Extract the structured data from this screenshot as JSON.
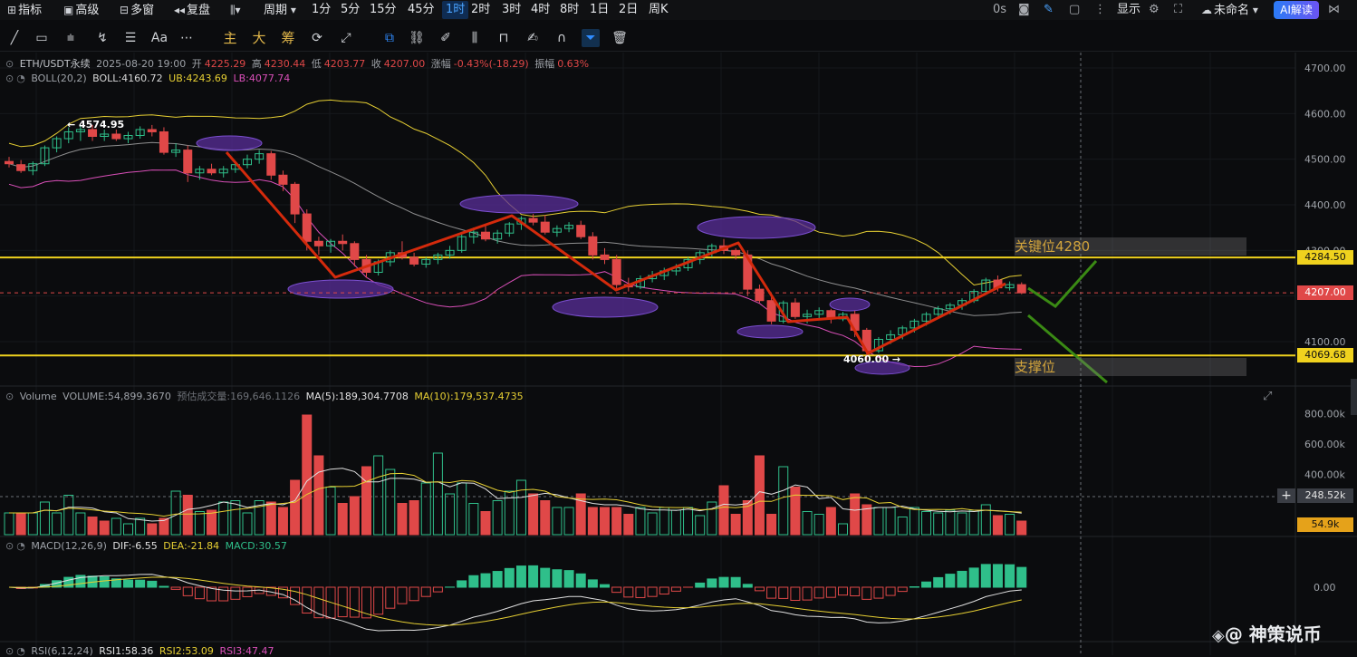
{
  "toolbar": {
    "indicator": "指标",
    "advanced": "高级",
    "multi_window": "多窗",
    "replay": "复盘",
    "period": "周期",
    "intervals": [
      "1分",
      "5分",
      "15分",
      "45分",
      "1时",
      "2时",
      "3时",
      "4时",
      "8时",
      "1日",
      "2日",
      "周K"
    ],
    "active_interval": "1时",
    "countdown": "0s",
    "display": "显示",
    "unnamed": "未命名",
    "ai_button": "AI解读"
  },
  "drawing_tools": {
    "main": "主",
    "big": "大",
    "chips": "筹",
    "text_tool": "Aa"
  },
  "legend": {
    "symbol": "ETH/USDT永续",
    "datetime": "2025-08-20 19:00",
    "open_label": "开",
    "open": "4225.29",
    "high_label": "高",
    "high": "4230.44",
    "low_label": "低",
    "low": "4203.77",
    "close_label": "收",
    "close": "4207.00",
    "change_label": "涨幅",
    "change": "-0.43%(-18.29)",
    "amp_label": "振幅",
    "amp": "0.63%",
    "boll_name": "BOLL(20,2)",
    "boll": "BOLL:4160.72",
    "ub": "UB:4243.69",
    "lb": "LB:4077.74",
    "volume_name": "Volume",
    "volume": "VOLUME:54,899.3670",
    "est_volume": "预估成交量:169,646.1126",
    "ma5": "MA(5):189,304.7708",
    "ma10": "MA(10):179,537.4735",
    "macd_name": "MACD(12,26,9)",
    "dif": "DIF:-6.55",
    "dea": "DEA:-21.84",
    "macd": "MACD:30.57",
    "rsi_name": "RSI(6,12,24)",
    "rsi1": "RSI1:58.36",
    "rsi2": "RSI2:53.09",
    "rsi3": "RSI3:47.47"
  },
  "annotations": {
    "key_level": "关键位4280",
    "support": "支撑位",
    "high_mark": "← 4574.95",
    "low_mark": "4060.00 →"
  },
  "price_tags": {
    "key_line": "4284.50",
    "current": "4207.00",
    "support_line": "4069.68",
    "vol_cursor": "248.52k",
    "vol_current": "54.9k"
  },
  "watermark": "@ 神策说币",
  "colors": {
    "up": "#2fbf8a",
    "down": "#e04848",
    "ub": "#e6cf33",
    "lb": "#d94fb8",
    "mid": "#c8c8c8",
    "level_line": "#f0d21e",
    "trend": "#d42a0c",
    "projection": "#3a8a14",
    "ellipse": "#5a2e9a"
  },
  "chart_data": {
    "type": "candlestick",
    "symbol": "ETH/USDT",
    "interval": "1h",
    "y_axis": {
      "ticks": [
        4100,
        4200,
        4300,
        4400,
        4500,
        4600,
        4700
      ],
      "labels": [
        "4100.00",
        "4200.00",
        "4300.00",
        "4400.00",
        "4500.00",
        "4600.00",
        "4700.00"
      ],
      "range": [
        4000,
        4720
      ]
    },
    "candles": [
      [
        4495,
        4505,
        4482,
        4490
      ],
      [
        4488,
        4498,
        4470,
        4475
      ],
      [
        4475,
        4495,
        4465,
        4490
      ],
      [
        4490,
        4530,
        4485,
        4525
      ],
      [
        4525,
        4550,
        4515,
        4545
      ],
      [
        4545,
        4570,
        4535,
        4560
      ],
      [
        4560,
        4575,
        4540,
        4565
      ],
      [
        4565,
        4575,
        4540,
        4550
      ],
      [
        4550,
        4565,
        4540,
        4555
      ],
      [
        4555,
        4565,
        4540,
        4545
      ],
      [
        4545,
        4560,
        4535,
        4552
      ],
      [
        4552,
        4572,
        4545,
        4565
      ],
      [
        4565,
        4575,
        4550,
        4560
      ],
      [
        4560,
        4570,
        4510,
        4515
      ],
      [
        4515,
        4535,
        4505,
        4520
      ],
      [
        4520,
        4530,
        4450,
        4470
      ],
      [
        4470,
        4485,
        4455,
        4478
      ],
      [
        4478,
        4490,
        4465,
        4470
      ],
      [
        4470,
        4485,
        4460,
        4478
      ],
      [
        4478,
        4492,
        4470,
        4488
      ],
      [
        4488,
        4510,
        4480,
        4500
      ],
      [
        4500,
        4520,
        4490,
        4512
      ],
      [
        4512,
        4518,
        4455,
        4465
      ],
      [
        4465,
        4475,
        4430,
        4445
      ],
      [
        4445,
        4450,
        4360,
        4380
      ],
      [
        4380,
        4390,
        4300,
        4320
      ],
      [
        4320,
        4330,
        4290,
        4310
      ],
      [
        4310,
        4325,
        4295,
        4320
      ],
      [
        4320,
        4335,
        4300,
        4315
      ],
      [
        4315,
        4320,
        4265,
        4280
      ],
      [
        4280,
        4290,
        4240,
        4252
      ],
      [
        4252,
        4280,
        4245,
        4275
      ],
      [
        4275,
        4300,
        4265,
        4295
      ],
      [
        4295,
        4320,
        4280,
        4285
      ],
      [
        4285,
        4295,
        4265,
        4270
      ],
      [
        4270,
        4285,
        4262,
        4280
      ],
      [
        4280,
        4295,
        4270,
        4290
      ],
      [
        4290,
        4310,
        4282,
        4300
      ],
      [
        4300,
        4335,
        4295,
        4330
      ],
      [
        4330,
        4350,
        4315,
        4340
      ],
      [
        4340,
        4355,
        4320,
        4325
      ],
      [
        4325,
        4345,
        4315,
        4338
      ],
      [
        4338,
        4362,
        4330,
        4358
      ],
      [
        4358,
        4375,
        4345,
        4370
      ],
      [
        4370,
        4380,
        4355,
        4362
      ],
      [
        4362,
        4378,
        4335,
        4340
      ],
      [
        4340,
        4355,
        4330,
        4348
      ],
      [
        4348,
        4362,
        4340,
        4355
      ],
      [
        4355,
        4365,
        4325,
        4330
      ],
      [
        4330,
        4340,
        4280,
        4290
      ],
      [
        4290,
        4305,
        4270,
        4280
      ],
      [
        4280,
        4290,
        4215,
        4225
      ],
      [
        4225,
        4240,
        4210,
        4220
      ],
      [
        4220,
        4245,
        4215,
        4238
      ],
      [
        4238,
        4255,
        4230,
        4245
      ],
      [
        4245,
        4262,
        4235,
        4255
      ],
      [
        4255,
        4270,
        4245,
        4262
      ],
      [
        4262,
        4285,
        4255,
        4280
      ],
      [
        4280,
        4300,
        4270,
        4295
      ],
      [
        4295,
        4315,
        4285,
        4310
      ],
      [
        4310,
        4325,
        4292,
        4300
      ],
      [
        4300,
        4305,
        4280,
        4290
      ],
      [
        4290,
        4300,
        4200,
        4215
      ],
      [
        4215,
        4225,
        4185,
        4190
      ],
      [
        4190,
        4200,
        4138,
        4145
      ],
      [
        4145,
        4190,
        4140,
        4185
      ],
      [
        4185,
        4195,
        4150,
        4155
      ],
      [
        4155,
        4170,
        4140,
        4160
      ],
      [
        4160,
        4175,
        4150,
        4168
      ],
      [
        4168,
        4172,
        4140,
        4150
      ],
      [
        4150,
        4165,
        4145,
        4160
      ],
      [
        4160,
        4168,
        4110,
        4125
      ],
      [
        4125,
        4130,
        4060,
        4080
      ],
      [
        4080,
        4110,
        4075,
        4105
      ],
      [
        4105,
        4125,
        4095,
        4115
      ],
      [
        4115,
        4135,
        4105,
        4130
      ],
      [
        4130,
        4150,
        4120,
        4145
      ],
      [
        4145,
        4165,
        4135,
        4160
      ],
      [
        4160,
        4178,
        4150,
        4172
      ],
      [
        4172,
        4185,
        4160,
        4180
      ],
      [
        4180,
        4195,
        4170,
        4190
      ],
      [
        4190,
        4215,
        4185,
        4210
      ],
      [
        4210,
        4240,
        4205,
        4235
      ],
      [
        4235,
        4245,
        4210,
        4218
      ],
      [
        4218,
        4232,
        4212,
        4225
      ],
      [
        4225,
        4230,
        4204,
        4207
      ]
    ],
    "levels": [
      {
        "label": "4284.50",
        "value": 4284.5
      },
      {
        "label": "4069.68",
        "value": 4069.68
      }
    ],
    "current_price": 4207.0,
    "high_marker": 4574.95,
    "low_marker": 4060.0,
    "volume": {
      "y_ticks": [
        "800.00k",
        "600.00k",
        "400.00k"
      ],
      "y_values": [
        800000,
        600000,
        400000
      ],
      "bars": [
        0.16,
        0.16,
        0.16,
        0.24,
        0.16,
        0.29,
        0.16,
        0.13,
        0.1,
        0.12,
        0.08,
        0.12,
        0.08,
        0.12,
        0.32,
        0.29,
        0.17,
        0.18,
        0.24,
        0.25,
        0.16,
        0.25,
        0.24,
        0.2,
        0.4,
        0.88,
        0.58,
        0.35,
        0.23,
        0.28,
        0.5,
        0.58,
        0.48,
        0.23,
        0.25,
        0.38,
        0.6,
        0.3,
        0.38,
        0.23,
        0.17,
        0.25,
        0.32,
        0.4,
        0.3,
        0.25,
        0.2,
        0.2,
        0.3,
        0.2,
        0.2,
        0.2,
        0.15,
        0.2,
        0.16,
        0.2,
        0.18,
        0.2,
        0.14,
        0.24,
        0.36,
        0.15,
        0.25,
        0.58,
        0.15,
        0.5,
        0.35,
        0.17,
        0.15,
        0.2,
        0.08,
        0.3,
        0.22,
        0.2,
        0.2,
        0.13,
        0.2,
        0.17,
        0.16,
        0.18,
        0.16,
        0.18,
        0.22,
        0.14,
        0.15,
        0.1
      ],
      "bars_up": [
        1,
        0,
        1,
        1,
        1,
        1,
        1,
        0,
        0,
        1,
        1,
        1,
        0,
        0,
        1,
        0,
        1,
        0,
        1,
        1,
        1,
        1,
        0,
        0,
        0,
        0,
        0,
        1,
        0,
        0,
        0,
        1,
        1,
        0,
        0,
        1,
        1,
        1,
        1,
        1,
        0,
        1,
        1,
        1,
        0,
        0,
        1,
        1,
        0,
        0,
        0,
        0,
        0,
        1,
        1,
        1,
        1,
        1,
        1,
        1,
        0,
        0,
        0,
        0,
        0,
        1,
        0,
        1,
        1,
        0,
        1,
        0,
        0,
        1,
        1,
        1,
        1,
        1,
        1,
        1,
        1,
        1,
        1,
        0,
        1,
        0
      ]
    },
    "macd": {
      "zero_label": "0.00"
    }
  }
}
